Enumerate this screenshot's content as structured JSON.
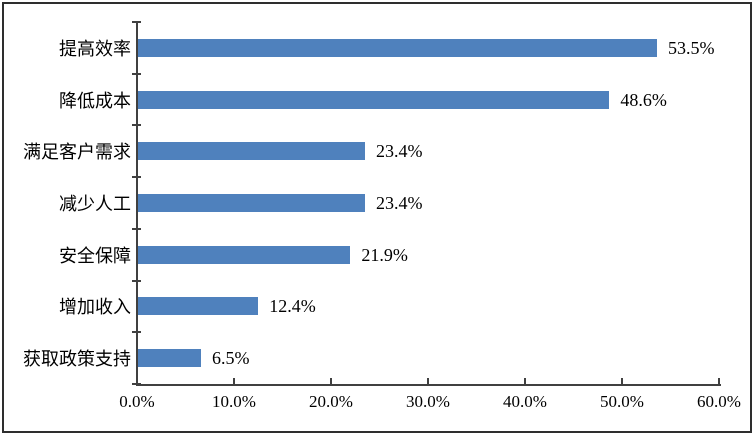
{
  "chart_data": {
    "type": "bar",
    "orientation": "horizontal",
    "title": "",
    "xlabel": "",
    "ylabel": "",
    "legend_visible": false,
    "grid": false,
    "categories": [
      "提高效率",
      "降低成本",
      "满足客户需求",
      "减少人工",
      "安全保障",
      "增加收入",
      "获取政策支持"
    ],
    "values": [
      53.5,
      48.6,
      23.4,
      23.4,
      21.9,
      12.4,
      6.5
    ],
    "data_labels": [
      "53.5%",
      "48.6%",
      "23.4%",
      "23.4%",
      "21.9%",
      "12.4%",
      "6.5%"
    ],
    "x_tick_labels": [
      "0.0%",
      "10.0%",
      "20.0%",
      "30.0%",
      "40.0%",
      "50.0%",
      "60.0%"
    ],
    "x_tick_values": [
      0,
      10,
      20,
      30,
      40,
      50,
      60
    ],
    "xlim": [
      0,
      60
    ],
    "colors": {
      "bar": "#4F81BD",
      "axis": "#404040",
      "text": "#000000",
      "background": "#FFFFFF",
      "frame_border": "#2E2E2E"
    }
  }
}
